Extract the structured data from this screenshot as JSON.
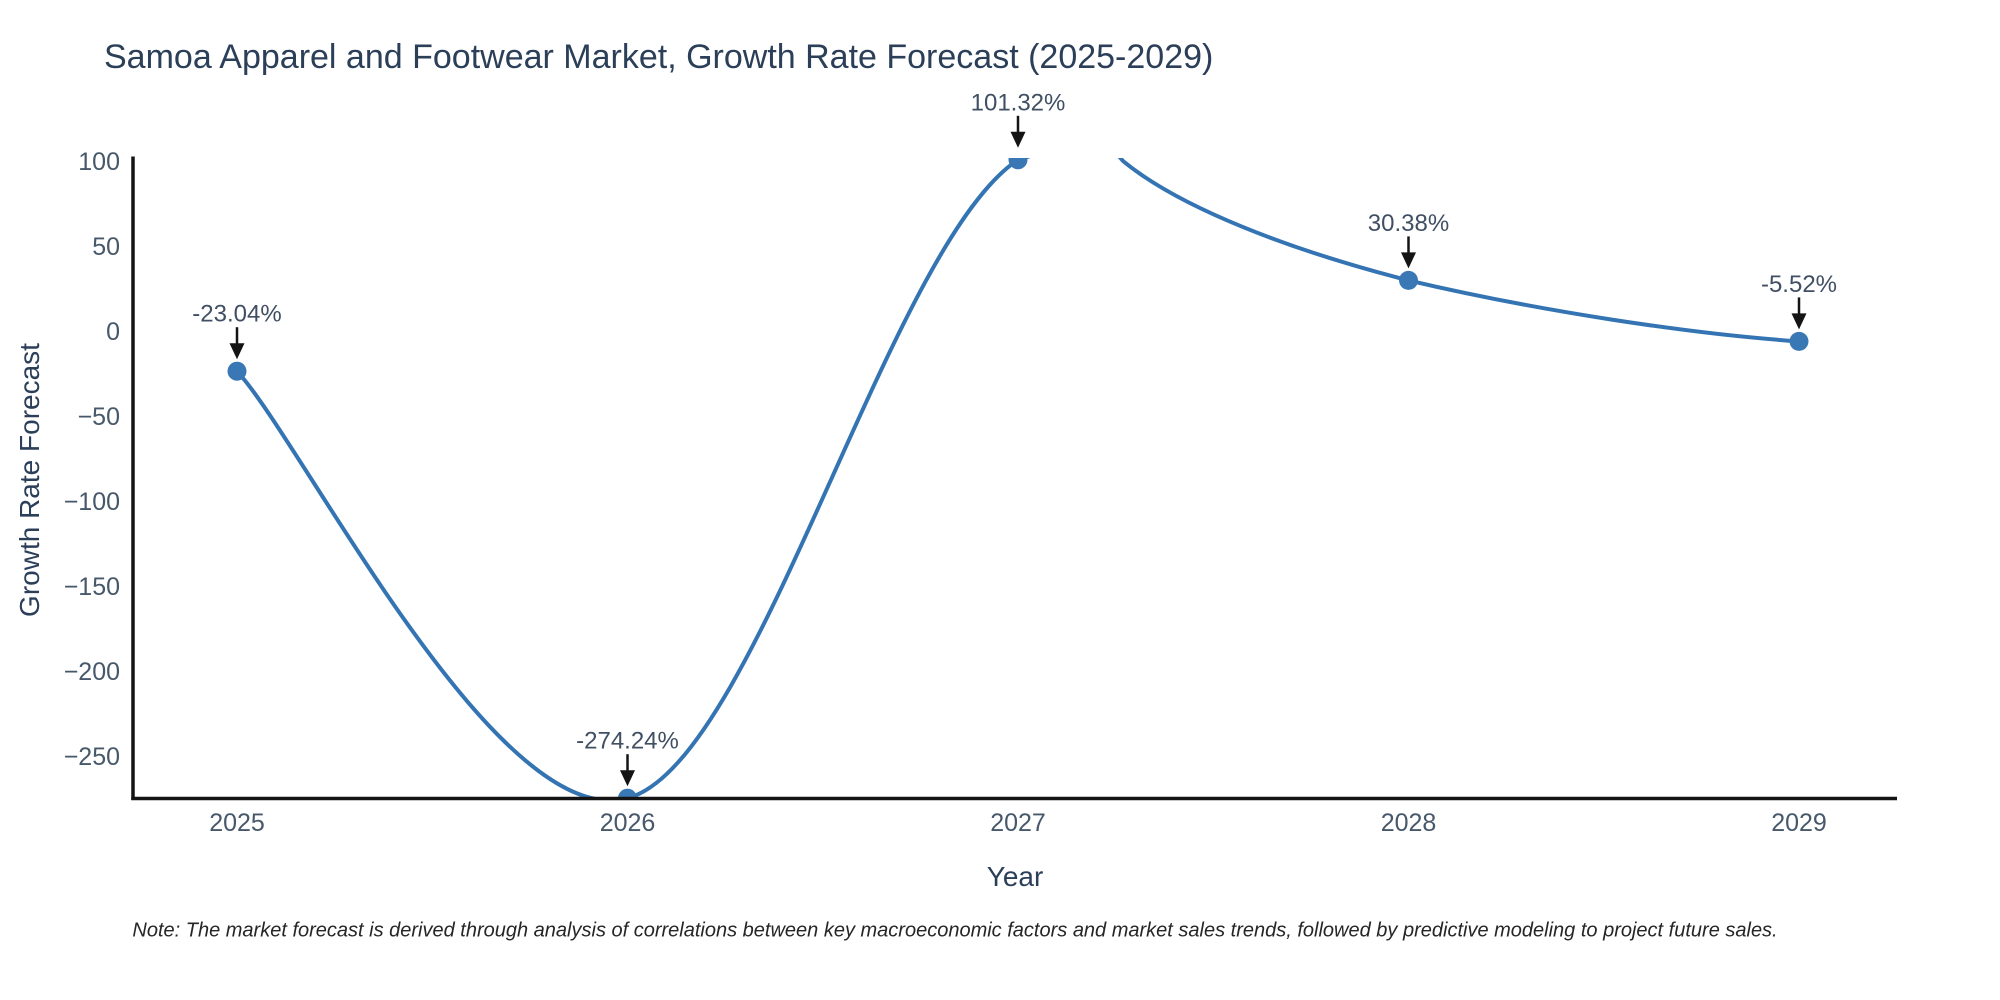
{
  "title": "Samoa Apparel and Footwear Market, Growth Rate Forecast (2025-2029)",
  "note": "Note: The market forecast is derived through analysis of correlations between key macroeconomic factors and market sales trends, followed by predictive modeling to project future sales.",
  "chart_data": {
    "type": "line",
    "line_shape": "spline",
    "title": "Samoa Apparel and Footwear Market, Growth Rate Forecast (2025-2029)",
    "xlabel": "Year",
    "ylabel": "Growth Rate Forecast",
    "x": [
      2025,
      2026,
      2027,
      2028,
      2029
    ],
    "y": [
      -23.04,
      -274.24,
      101.32,
      30.38,
      -5.52
    ],
    "series_name": "Growth Rate Forecast",
    "annotations": [
      {
        "x": 2025,
        "y": -23.04,
        "text": "-23.04%"
      },
      {
        "x": 2026,
        "y": -274.24,
        "text": "-274.24%"
      },
      {
        "x": 2027,
        "y": 101.32,
        "text": "101.32%"
      },
      {
        "x": 2028,
        "y": 30.38,
        "text": "30.38%"
      },
      {
        "x": 2029,
        "y": -5.52,
        "text": "-5.52%"
      }
    ],
    "yticks": [
      100,
      50,
      0,
      -50,
      -100,
      -150,
      -200,
      -250
    ],
    "xticks": [
      2025,
      2026,
      2027,
      2028,
      2029
    ],
    "ylim": [
      -278.8,
      102.4
    ],
    "grid": false,
    "legend_position": "none",
    "colors": {
      "line": "#3474b3",
      "marker": "#3a78b5",
      "axis": "#141414",
      "tick_label": "#47586a",
      "annotation_text": "#404f63",
      "arrow": "#141414",
      "background": "#ffffff"
    }
  }
}
